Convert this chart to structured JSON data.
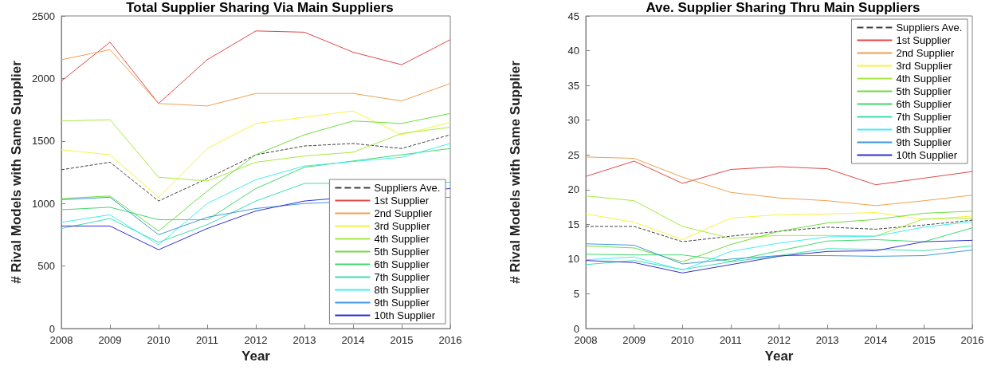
{
  "chart_data": [
    {
      "type": "line",
      "title": "Total Supplier Sharing Via Main Suppliers",
      "xlabel": "Year",
      "ylabel": "# Rival Models with Same Supplier",
      "x": [
        2008,
        2009,
        2010,
        2011,
        2012,
        2013,
        2014,
        2015,
        2016
      ],
      "xlim": [
        2008,
        2016
      ],
      "xticks": [
        2008,
        2009,
        2010,
        2011,
        2012,
        2013,
        2014,
        2015,
        2016
      ],
      "ylim": [
        0,
        2500
      ],
      "yticks": [
        0,
        500,
        1000,
        1500,
        2000,
        2500
      ],
      "grid": false,
      "marker": "none",
      "legend": "bottom right",
      "series": [
        {
          "name": "Suppliers Ave.",
          "color": "#404040",
          "line_style": "dashed",
          "values": [
            1270,
            1330,
            1020,
            1200,
            1390,
            1460,
            1480,
            1440,
            1550
          ]
        },
        {
          "name": "1st Supplier",
          "color": "#e04848",
          "values": [
            1980,
            2290,
            1800,
            2150,
            2380,
            2370,
            2210,
            2110,
            2310
          ]
        },
        {
          "name": "2nd Supplier",
          "color": "#f0a050",
          "values": [
            2150,
            2230,
            1800,
            1780,
            1880,
            1880,
            1880,
            1820,
            1960
          ]
        },
        {
          "name": "3rd Supplier",
          "color": "#f4f440",
          "values": [
            1430,
            1390,
            1050,
            1440,
            1640,
            1690,
            1740,
            1550,
            1650
          ]
        },
        {
          "name": "4th Supplier",
          "color": "#a8e840",
          "values": [
            1660,
            1670,
            1210,
            1180,
            1330,
            1380,
            1410,
            1560,
            1610
          ]
        },
        {
          "name": "5th Supplier",
          "color": "#70dc40",
          "values": [
            1040,
            1060,
            780,
            1100,
            1390,
            1550,
            1660,
            1640,
            1720
          ]
        },
        {
          "name": "6th Supplier",
          "color": "#40d870",
          "values": [
            950,
            970,
            870,
            870,
            1120,
            1290,
            null,
            null,
            1440
          ]
        },
        {
          "name": "7th Supplier",
          "color": "#40dcb0",
          "values": [
            800,
            880,
            690,
            830,
            1020,
            1160,
            null,
            null,
            1170
          ]
        },
        {
          "name": "8th Supplier",
          "color": "#40eef0",
          "values": [
            850,
            910,
            670,
            1000,
            1190,
            1300,
            null,
            1370,
            1480
          ]
        },
        {
          "name": "9th Supplier",
          "color": "#4098dc",
          "values": [
            1030,
            1050,
            750,
            890,
            960,
            1000,
            null,
            null,
            1050
          ]
        },
        {
          "name": "10th Supplier",
          "color": "#3030d0",
          "values": [
            820,
            820,
            630,
            800,
            940,
            1020,
            null,
            null,
            1120
          ]
        }
      ]
    },
    {
      "type": "line",
      "title": "Ave. Supplier Sharing Thru Main Suppliers",
      "xlabel": "Year",
      "ylabel": "# Rival Models with Same Supplier",
      "x": [
        2008,
        2009,
        2010,
        2011,
        2012,
        2013,
        2014,
        2015,
        2016
      ],
      "xlim": [
        2008,
        2016
      ],
      "xticks": [
        2008,
        2009,
        2010,
        2011,
        2012,
        2013,
        2014,
        2015,
        2016
      ],
      "ylim": [
        0,
        45
      ],
      "yticks": [
        0,
        5,
        10,
        15,
        20,
        25,
        30,
        35,
        40,
        45
      ],
      "grid": false,
      "marker": "none",
      "legend": "top right",
      "series": [
        {
          "name": "Suppliers Ave.",
          "color": "#404040",
          "line_style": "dashed",
          "values": [
            14.7,
            14.7,
            12.5,
            13.3,
            14.0,
            14.6,
            14.3,
            14.9,
            15.6
          ]
        },
        {
          "name": "1st Supplier",
          "color": "#e04848",
          "values": [
            21.9,
            24.1,
            20.9,
            22.9,
            23.3,
            23.0,
            20.7,
            null,
            22.6
          ]
        },
        {
          "name": "2nd Supplier",
          "color": "#f0a050",
          "values": [
            24.7,
            24.5,
            21.8,
            19.6,
            18.8,
            18.4,
            17.7,
            18.4,
            19.2
          ]
        },
        {
          "name": "3rd Supplier",
          "color": "#f4f440",
          "values": [
            16.5,
            15.3,
            12.8,
            15.9,
            16.4,
            16.5,
            16.7,
            15.7,
            16.2
          ]
        },
        {
          "name": "4th Supplier",
          "color": "#a8e840",
          "values": [
            19.1,
            18.4,
            14.7,
            13.0,
            13.4,
            13.4,
            13.3,
            15.8,
            15.9
          ]
        },
        {
          "name": "5th Supplier",
          "color": "#70dc40",
          "values": [
            11.9,
            11.6,
            9.6,
            12.1,
            14.0,
            15.2,
            15.7,
            16.6,
            16.9
          ]
        },
        {
          "name": "6th Supplier",
          "color": "#40d870",
          "values": [
            10.7,
            10.6,
            10.6,
            9.7,
            11.2,
            12.6,
            12.8,
            12.5,
            14.5
          ]
        },
        {
          "name": "7th Supplier",
          "color": "#40dcb0",
          "values": [
            9.2,
            9.8,
            8.5,
            9.6,
            10.5,
            11.5,
            11.4,
            11.2,
            11.9
          ]
        },
        {
          "name": "8th Supplier",
          "color": "#40eef0",
          "values": [
            9.9,
            10.3,
            8.4,
            11.1,
            12.3,
            13.2,
            13.3,
            14.6,
            15.4
          ]
        },
        {
          "name": "9th Supplier",
          "color": "#4098dc",
          "values": [
            12.2,
            12.0,
            9.3,
            10.0,
            10.5,
            10.5,
            10.4,
            10.5,
            11.3
          ]
        },
        {
          "name": "10th Supplier",
          "color": "#3030d0",
          "values": [
            9.8,
            9.5,
            8.0,
            9.2,
            10.4,
            11.1,
            11.2,
            12.5,
            12.7
          ]
        }
      ]
    }
  ]
}
